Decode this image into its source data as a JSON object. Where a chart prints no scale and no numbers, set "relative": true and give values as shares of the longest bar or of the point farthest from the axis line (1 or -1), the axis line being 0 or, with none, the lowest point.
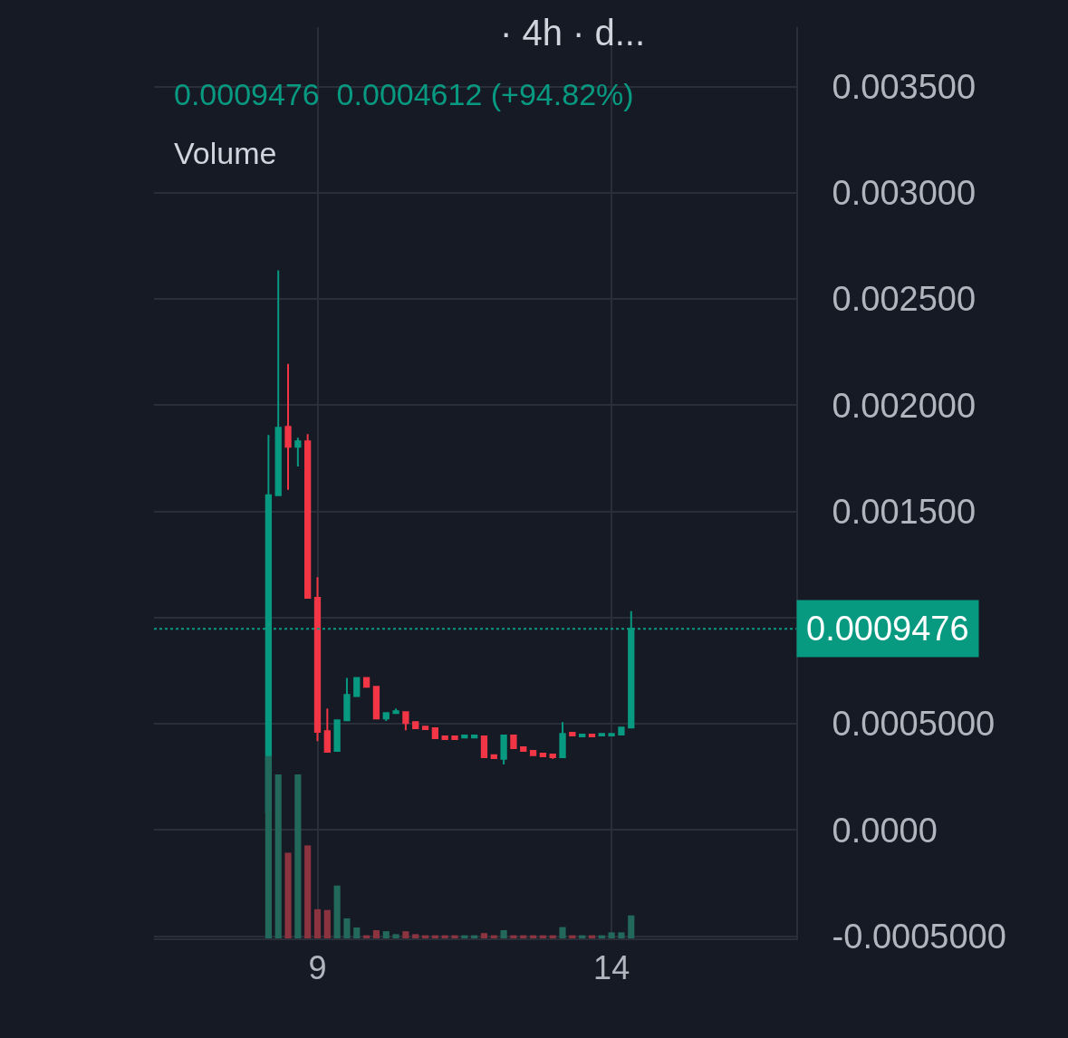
{
  "chart_data": [
    {
      "type": "candlestick",
      "title": "· 4h · d...",
      "annotations": [
        "0.0009476  0.0004612 (+94.82%)",
        "Volume"
      ],
      "x": [
        8.1667,
        8.3333,
        8.5,
        8.6667,
        8.8333,
        9.0,
        9.1667,
        9.3333,
        9.5,
        9.6667,
        9.8333,
        10.0,
        10.1667,
        10.3333,
        10.5,
        10.6667,
        10.8333,
        11.0,
        11.1667,
        11.3333,
        11.5,
        11.6667,
        11.8333,
        12.0,
        12.1667,
        12.3333,
        12.5,
        12.6667,
        12.8333,
        13.0,
        13.1667,
        13.3333,
        13.5,
        13.6667,
        13.8333,
        14.0,
        14.1667,
        14.3333
      ],
      "ohlc": [
        [
          8.5e-05,
          0.00186,
          8.5e-05,
          0.001576
        ],
        [
          0.001576,
          0.002635,
          0.001576,
          0.001894
        ],
        [
          0.001898,
          0.002195,
          0.001602,
          0.001805
        ],
        [
          0.001805,
          0.001847,
          0.001712,
          0.00183
        ],
        [
          0.00183,
          0.001864,
          0.001093,
          0.001093
        ],
        [
          0.001093,
          0.00119,
          0.000419,
          0.000462
        ],
        [
          0.000466,
          0.000572,
          0.000365,
          0.000369
        ],
        [
          0.000373,
          0.000517,
          0.000373,
          0.000517
        ],
        [
          0.000517,
          0.000716,
          0.000513,
          0.000636
        ],
        [
          0.000631,
          0.000716,
          0.000631,
          0.000716
        ],
        [
          0.000716,
          0.000716,
          0.000674,
          0.000674
        ],
        [
          0.000674,
          0.000674,
          0.000521,
          0.000525
        ],
        [
          0.000525,
          0.000555,
          0.000513,
          0.000551
        ],
        [
          0.000551,
          0.000572,
          0.000551,
          0.000559
        ],
        [
          0.000555,
          0.000555,
          0.00047,
          0.000504
        ],
        [
          0.000508,
          0.000508,
          0.000479,
          0.000479
        ],
        [
          0.000487,
          0.000487,
          0.000475,
          0.000475
        ],
        [
          0.000479,
          0.000479,
          0.000432,
          0.000432
        ],
        [
          0.000441,
          0.000441,
          0.000428,
          0.000428
        ],
        [
          0.000441,
          0.000441,
          0.000428,
          0.000428
        ],
        [
          0.000436,
          0.000445,
          0.000436,
          0.000445
        ],
        [
          0.000436,
          0.000445,
          0.000436,
          0.000445
        ],
        [
          0.000441,
          0.000441,
          0.000343,
          0.000343
        ],
        [
          0.000352,
          0.000352,
          0.000339,
          0.000339
        ],
        [
          0.000335,
          0.000445,
          0.000309,
          0.000445
        ],
        [
          0.000445,
          0.000445,
          0.000386,
          0.000386
        ],
        [
          0.00039,
          0.00039,
          0.000373,
          0.000373
        ],
        [
          0.000373,
          0.000373,
          0.000352,
          0.000352
        ],
        [
          0.00036,
          0.00036,
          0.000347,
          0.000347
        ],
        [
          0.000356,
          0.000356,
          0.000335,
          0.000343
        ],
        [
          0.000343,
          0.000508,
          0.000343,
          0.000453
        ],
        [
          0.000458,
          0.000458,
          0.000445,
          0.000445
        ],
        [
          0.000441,
          0.000449,
          0.000441,
          0.000449
        ],
        [
          0.000449,
          0.000449,
          0.000441,
          0.000441
        ],
        [
          0.000445,
          0.000453,
          0.000445,
          0.000453
        ],
        [
          0.000445,
          0.000453,
          0.000445,
          0.000453
        ],
        [
          0.000449,
          0.000483,
          0.000449,
          0.000483
        ],
        [
          0.000483,
          0.00103,
          0.000483,
          0.0009476
        ]
      ],
      "colors": [
        "#089981",
        "#089981",
        "#f23645",
        "#089981",
        "#f23645",
        "#f23645",
        "#f23645",
        "#089981",
        "#089981",
        "#089981",
        "#f23645",
        "#f23645",
        "#089981",
        "#089981",
        "#f23645",
        "#f23645",
        "#f23645",
        "#f23645",
        "#f23645",
        "#f23645",
        "#089981",
        "#089981",
        "#f23645",
        "#f23645",
        "#089981",
        "#f23645",
        "#f23645",
        "#f23645",
        "#f23645",
        "#f23645",
        "#089981",
        "#f23645",
        "#089981",
        "#f23645",
        "#089981",
        "#089981",
        "#089981",
        "#089981"
      ],
      "xlim": [
        6.22,
        17.14
      ],
      "xticks": [
        9,
        14
      ],
      "ylim": [
        -0.00051,
        0.00378
      ],
      "yticks": [
        {
          "value": -0.0005,
          "label": "-0.0005000"
        },
        {
          "value": 0,
          "label": "0.0000"
        },
        {
          "value": 0.0005,
          "label": "0.0005000"
        },
        {
          "value": 0.001,
          "label": null
        },
        {
          "value": 0.0015,
          "label": "0.001500"
        },
        {
          "value": 0.002,
          "label": "0.002000"
        },
        {
          "value": 0.0025,
          "label": "0.002500"
        },
        {
          "value": 0.003,
          "label": "0.003000"
        },
        {
          "value": 0.0035,
          "label": "0.003500"
        }
      ],
      "ref_lines": [
        {
          "axis": "y",
          "value": 0.0009476,
          "label": "0.0009476",
          "color": "#089981",
          "line_style": "dotted"
        }
      ],
      "grid": true,
      "legend": false
    },
    {
      "type": "bar",
      "relative": true,
      "tick_labels": false,
      "x": [
        8.1667,
        8.3333,
        8.5,
        8.6667,
        8.8333,
        9.0,
        9.1667,
        9.3333,
        9.5,
        9.6667,
        9.8333,
        10.0,
        10.1667,
        10.3333,
        10.5,
        10.6667,
        10.8333,
        11.0,
        11.1667,
        11.3333,
        11.5,
        11.6667,
        11.8333,
        12.0,
        12.1667,
        12.3333,
        12.5,
        12.6667,
        12.8333,
        13.0,
        13.1667,
        13.3333,
        13.5,
        13.6667,
        13.8333,
        14.0,
        14.1667,
        14.3333
      ],
      "values": [
        1,
        0.9,
        0.47,
        0.9,
        0.51,
        0.16,
        0.156,
        0.29,
        0.11,
        0.06,
        0.017,
        0.045,
        0.039,
        0.023,
        0.039,
        0.023,
        0.017,
        0.017,
        0.017,
        0.017,
        0.017,
        0.017,
        0.029,
        0.017,
        0.045,
        0.017,
        0.017,
        0.017,
        0.017,
        0.017,
        0.062,
        0.017,
        0.017,
        0.017,
        0.017,
        0.033,
        0.033,
        0.126
      ],
      "colors": [
        "#22695c",
        "#22695c",
        "#8c3340",
        "#22695c",
        "#8c3340",
        "#8c3340",
        "#8c3340",
        "#22695c",
        "#22695c",
        "#22695c",
        "#8c3340",
        "#8c3340",
        "#22695c",
        "#22695c",
        "#8c3340",
        "#8c3340",
        "#8c3340",
        "#8c3340",
        "#8c3340",
        "#8c3340",
        "#22695c",
        "#22695c",
        "#8c3340",
        "#8c3340",
        "#22695c",
        "#8c3340",
        "#8c3340",
        "#8c3340",
        "#8c3340",
        "#8c3340",
        "#22695c",
        "#8c3340",
        "#22695c",
        "#8c3340",
        "#22695c",
        "#22695c",
        "#22695c",
        "#22695c"
      ],
      "legend": false
    }
  ]
}
